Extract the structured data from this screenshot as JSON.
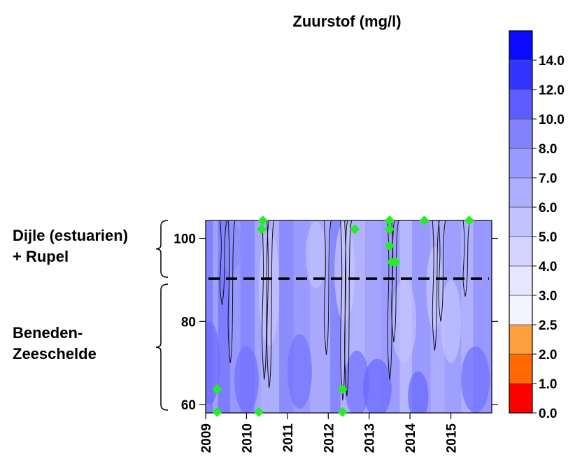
{
  "chart_data": {
    "type": "heatmap",
    "title": "Zuurstof (mg/l)",
    "x_ticks": [
      "2009",
      "2010",
      "2011",
      "2012",
      "2013",
      "2014",
      "2015"
    ],
    "y_ticks": [
      60,
      80,
      100
    ],
    "xlim": [
      2009.0,
      2016.0
    ],
    "ylim": [
      58.0,
      104.3
    ],
    "divider_y": 90.3,
    "region_labels": {
      "upper": [
        "Dijle (estuarien)",
        "+ Rupel"
      ],
      "lower": [
        "Beneden-",
        "Zeeschelde"
      ]
    },
    "colorbar": {
      "labels": [
        "0.0",
        "1.0",
        "2.0",
        "2.5",
        "3.0",
        "4.0",
        "5.0",
        "6.0",
        "7.0",
        "8.0",
        "10.0",
        "12.0",
        "14.0"
      ],
      "colors": [
        "#ff0000",
        "#ff6a00",
        "#ffa040",
        "#f4f4ff",
        "#e6e6ff",
        "#d4d4ff",
        "#c2c2ff",
        "#aeaeff",
        "#9a9aff",
        "#8282ff",
        "#5c5cff",
        "#3434ff",
        "#0a0aff"
      ]
    },
    "sample_points": [
      {
        "x": 2009.28,
        "y": 58.2
      },
      {
        "x": 2009.28,
        "y": 63.7
      },
      {
        "x": 2010.3,
        "y": 58.2
      },
      {
        "x": 2010.37,
        "y": 102.2
      },
      {
        "x": 2010.4,
        "y": 104.3
      },
      {
        "x": 2012.35,
        "y": 58.2
      },
      {
        "x": 2012.35,
        "y": 63.7
      },
      {
        "x": 2012.65,
        "y": 102.2
      },
      {
        "x": 2013.5,
        "y": 104.3
      },
      {
        "x": 2013.5,
        "y": 102.2
      },
      {
        "x": 2013.5,
        "y": 98.2
      },
      {
        "x": 2013.55,
        "y": 94.3
      },
      {
        "x": 2013.65,
        "y": 94.3
      },
      {
        "x": 2014.35,
        "y": 104.3
      },
      {
        "x": 2015.45,
        "y": 104.3
      }
    ],
    "colors": {
      "sample_marker": "#22ee22",
      "divider": "#000000"
    }
  }
}
